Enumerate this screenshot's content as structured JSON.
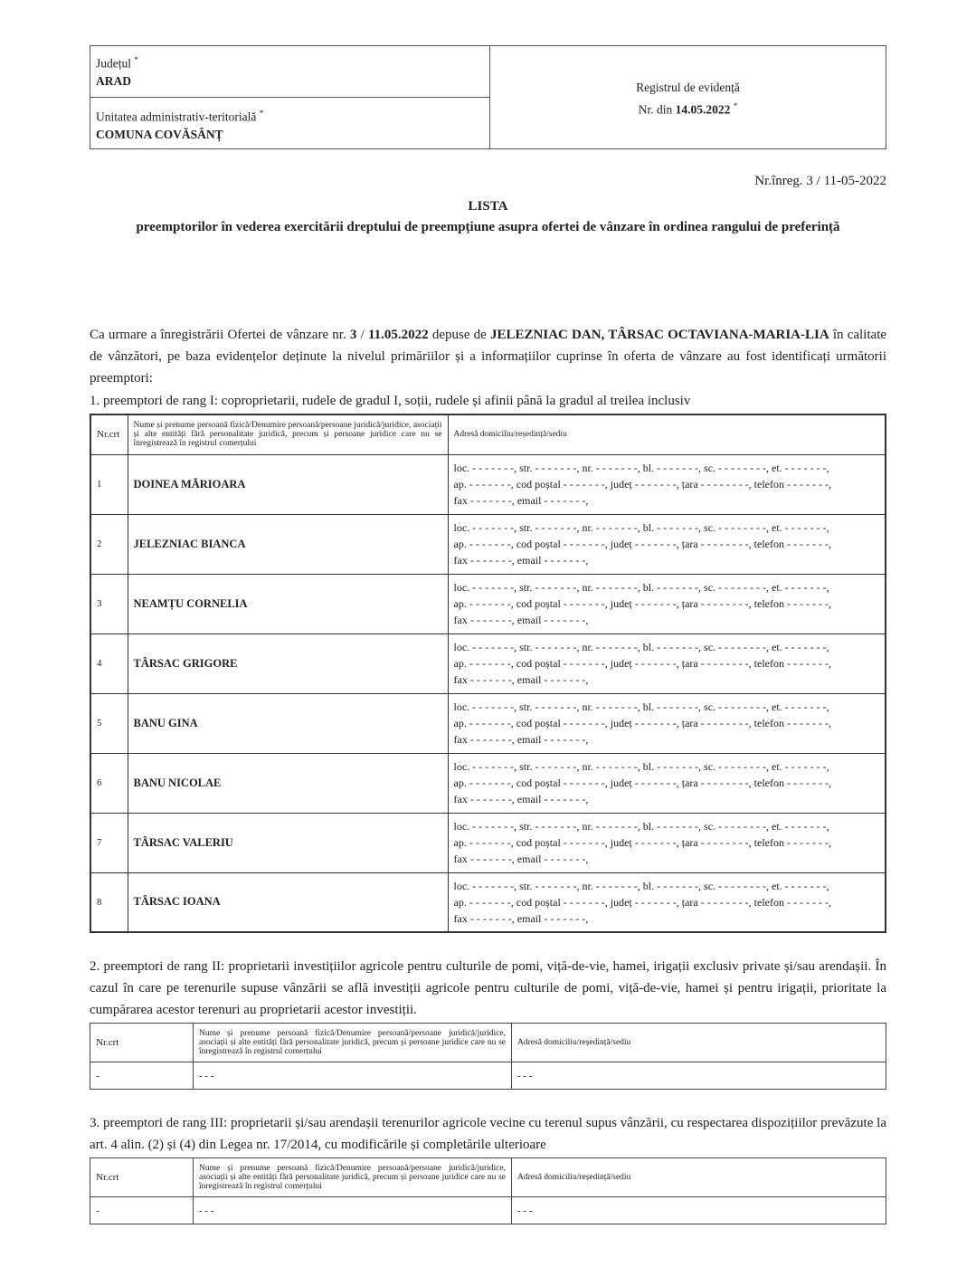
{
  "header": {
    "county_label": "Județul",
    "county_value": "ARAD",
    "uat_label": "Unitatea administrativ-teritorială",
    "uat_value": "COMUNA COVĂSÂNȚ",
    "required_mark": "*",
    "registry_label": "Registrul de evidență",
    "registry_nr_prefix": "Nr. din",
    "registry_date": "14.05.2022"
  },
  "nr_inreg": "Nr.înreg. 3 / 11-05-2022",
  "title": "LISTA",
  "subtitle": "preemptorilor în vederea exercitării dreptului de preempțiune asupra ofertei de vânzare în ordinea rangului de preferință",
  "intro": {
    "p1": "Ca urmare a înregistrării Ofertei de vânzare nr.",
    "offer_nr": "3",
    "sep": " / ",
    "offer_date": "11.05.2022",
    "p2": " depuse de ",
    "sellers": "JELEZNIAC DAN, TÂRSAC OCTAVIANA-MARIA-LIA",
    "p3": " în calitate de vânzători, pe baza evidențelor deținute la nivelul primăriilor și a informațiilor cuprinse în oferta de vânzare au fost identificați următorii preemptori:"
  },
  "columns": {
    "nr": "Nr.crt",
    "name": "Nume și prenume persoană fizică/Denumire persoană/persoane juridică/juridice, asociații și alte entități fără personalitate juridică, precum și persoane juridice care nu se înregistrează în registrul comerțului",
    "address": "Adresă domiciliu/reședință/sediu"
  },
  "address_template": {
    "line1": "loc. - - - - - - -, str. - - - - - - -, nr. - - - - - - -, bl. - - - - - - -, sc. - - - - - - - -, et. - - - - - - -,",
    "line2": "ap. - - - - - - -, cod poștal - - - - - - -, județ - - - - - - -, țara - - - - - - - -, telefon - - - - - - -,",
    "line3": "fax - - - - - - -, email - - - - - - -,"
  },
  "rank1": {
    "heading": "1. preemptori de rang I: coproprietarii, rudele de gradul I, soții, rudele și afinii până la gradul al treilea inclusiv",
    "rows": [
      {
        "nr": "1",
        "name": "DOINEA MĂRIOARA"
      },
      {
        "nr": "2",
        "name": "JELEZNIAC BIANCA"
      },
      {
        "nr": "3",
        "name": "NEAMȚU CORNELIA"
      },
      {
        "nr": "4",
        "name": "TÂRSAC GRIGORE"
      },
      {
        "nr": "5",
        "name": "BANU GINA"
      },
      {
        "nr": "6",
        "name": "BANU NICOLAE"
      },
      {
        "nr": "7",
        "name": "TÂRSAC VALERIU"
      },
      {
        "nr": "8",
        "name": "TÂRSAC IOANA"
      }
    ]
  },
  "rank2": {
    "heading": "2. preemptori de rang II: proprietarii investițiilor agricole pentru culturile de pomi, viță-de-vie, hamei, irigații exclusiv private și/sau arendașii. În cazul în care pe terenurile supuse vânzării se află investiții agricole pentru culturile de pomi, viță-de-vie, hamei și pentru irigații, prioritate la cumpărarea acestor terenuri au proprietarii acestor investiții.",
    "row": {
      "nr": "-",
      "name": "- - -",
      "address": "- - -"
    }
  },
  "rank3": {
    "heading": "3. preemptori de rang III: proprietarii și/sau arendașii terenurilor agricole vecine cu terenul supus vânzării, cu respectarea dispozițiilor prevăzute la art. 4 alin. (2) și (4) din Legea nr. 17/2014, cu modificările și completările ulterioare",
    "row": {
      "nr": "-",
      "name": "- - -",
      "address": "- - -"
    }
  }
}
